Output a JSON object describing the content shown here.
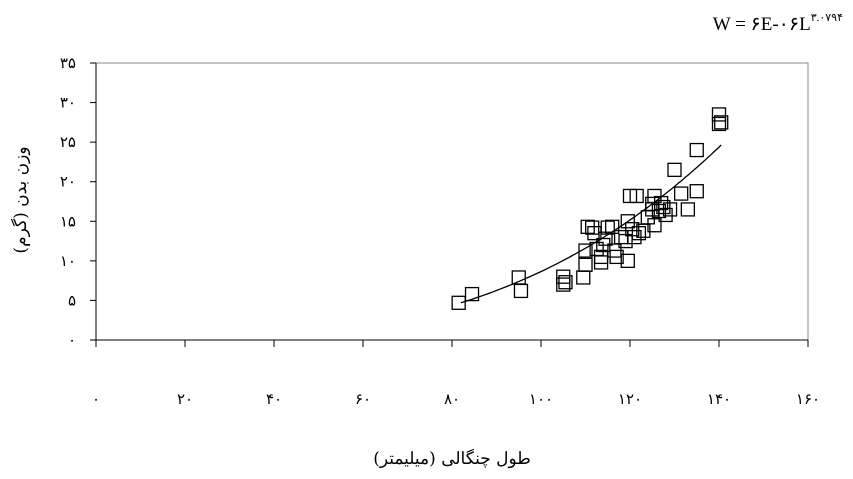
{
  "chart_data": {
    "type": "scatter",
    "equation_main": "W = ۶E-۰۶L",
    "equation_exponent": "۳.۰۷۹۴",
    "xlabel": "طول چنگالی (میلیمتر)",
    "ylabel": "وزن بدن (گرم)",
    "xlim": [
      0,
      160
    ],
    "ylim": [
      0,
      35
    ],
    "x_ticks": [
      0,
      20,
      40,
      60,
      80,
      100,
      120,
      140,
      160
    ],
    "x_tick_labels": [
      "۰",
      "۲۰",
      "۴۰",
      "۶۰",
      "۸۰",
      "۱۰۰",
      "۱۲۰",
      "۱۴۰",
      "۱۶۰"
    ],
    "y_ticks": [
      0,
      5,
      10,
      15,
      20,
      25,
      30,
      35
    ],
    "y_tick_labels": [
      "۰",
      "۵",
      "۱۰",
      "۱۵",
      "۲۰",
      "۲۵",
      "۳۰",
      "۳۵"
    ],
    "grid": false,
    "marker": "open-square",
    "trendline": {
      "type": "power",
      "coefficient": 6e-06,
      "exponent": 3.0794,
      "x_range": [
        82,
        140.5
      ]
    },
    "points": [
      [
        81.5,
        4.7
      ],
      [
        84.5,
        5.8
      ],
      [
        95.0,
        7.9
      ],
      [
        95.5,
        6.2
      ],
      [
        105.0,
        7.0
      ],
      [
        105.0,
        8.0
      ],
      [
        105.5,
        7.3
      ],
      [
        109.5,
        7.9
      ],
      [
        110.0,
        9.5
      ],
      [
        110.0,
        11.3
      ],
      [
        110.5,
        14.3
      ],
      [
        111.5,
        14.2
      ],
      [
        112.0,
        13.5
      ],
      [
        112.5,
        11.5
      ],
      [
        113.5,
        9.8
      ],
      [
        113.5,
        10.5
      ],
      [
        114.0,
        12.0
      ],
      [
        114.5,
        12.8
      ],
      [
        115.0,
        14.2
      ],
      [
        116.0,
        14.3
      ],
      [
        116.5,
        11.3
      ],
      [
        117.0,
        10.5
      ],
      [
        118.0,
        13.0
      ],
      [
        119.0,
        12.5
      ],
      [
        119.5,
        15.0
      ],
      [
        119.5,
        10.0
      ],
      [
        120.0,
        18.2
      ],
      [
        120.5,
        14.0
      ],
      [
        121.0,
        13.0
      ],
      [
        121.5,
        18.2
      ],
      [
        122.0,
        13.5
      ],
      [
        123.0,
        13.8
      ],
      [
        124.0,
        15.5
      ],
      [
        125.0,
        16.5
      ],
      [
        125.0,
        17.2
      ],
      [
        125.5,
        14.5
      ],
      [
        125.5,
        18.2
      ],
      [
        126.5,
        16.3
      ],
      [
        127.0,
        17.3
      ],
      [
        127.5,
        16.8
      ],
      [
        128.0,
        15.8
      ],
      [
        129.0,
        16.5
      ],
      [
        130.0,
        21.5
      ],
      [
        131.5,
        18.5
      ],
      [
        133.0,
        16.5
      ],
      [
        135.0,
        18.8
      ],
      [
        135.0,
        24.0
      ],
      [
        140.0,
        27.3
      ],
      [
        140.0,
        28.5
      ],
      [
        140.5,
        27.5
      ]
    ]
  }
}
